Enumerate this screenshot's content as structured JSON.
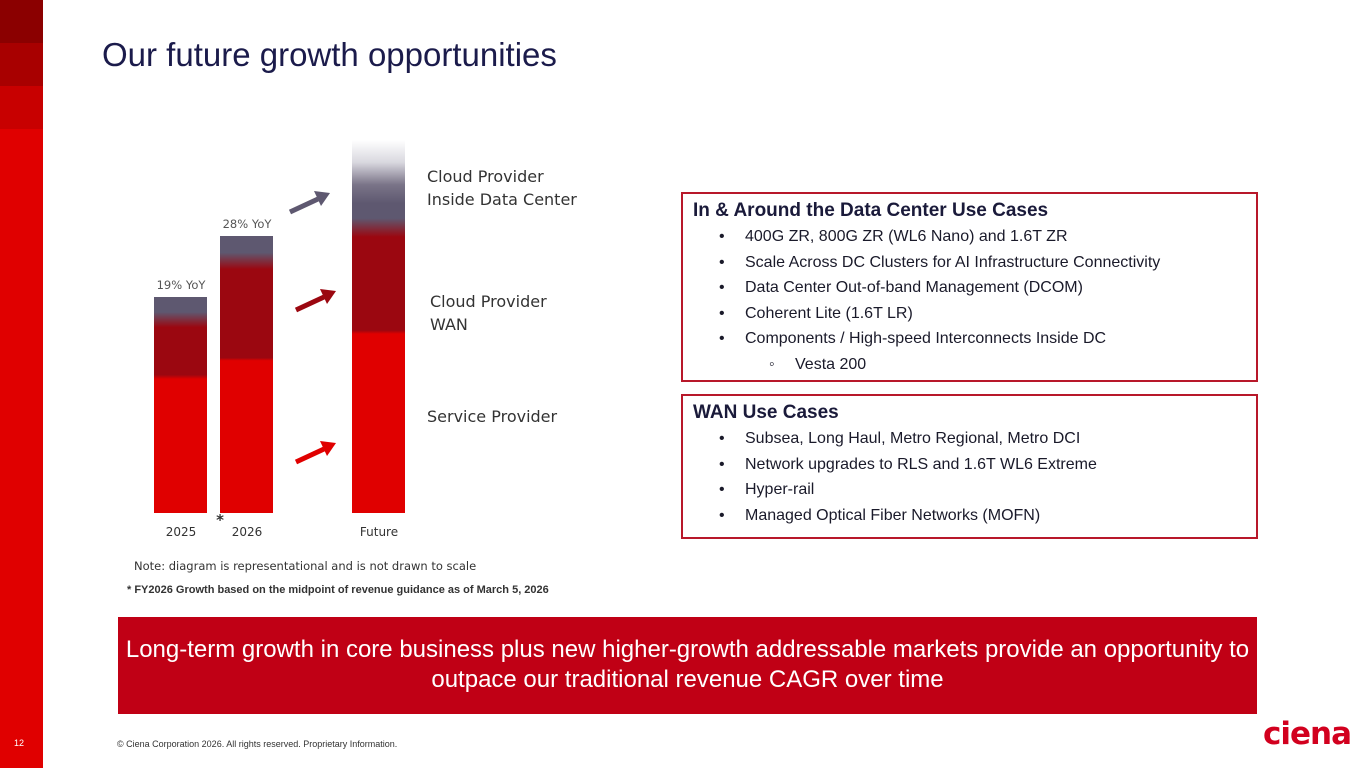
{
  "slide": {
    "title": "Our future growth opportunities",
    "page_number": "12",
    "copyright": "© Ciena Corporation 2026. All rights reserved. Proprietary Information.",
    "logo_text": "ciena"
  },
  "chart_data": {
    "type": "bar",
    "stacked": true,
    "categories": [
      "2025",
      "2026",
      "Future"
    ],
    "category_marker": "*",
    "bar_labels": [
      "19% YoY",
      "28% YoY",
      ""
    ],
    "segments": [
      "Service Provider",
      "Cloud Provider WAN",
      "Cloud Provider Inside Data Center"
    ],
    "segment_labels": [
      "Service Provider",
      "Cloud Provider\nWAN",
      "Cloud Provider\nInside Data Center"
    ],
    "colors": {
      "service_provider": "#e00000",
      "cloud_wan": "#9b0710",
      "cloud_dc": "#5e5870"
    }
  },
  "boxes": {
    "dc": {
      "title": "In & Around the Data Center Use Cases",
      "items": [
        "400G ZR, 800G ZR (WL6 Nano) and 1.6T ZR",
        "Scale Across DC Clusters for AI Infrastructure Connectivity",
        "Data Center Out-of-band Management (DCOM)",
        "Coherent Lite (1.6T LR)",
        "Components / High-speed Interconnects Inside DC"
      ],
      "sub_item": "Vesta 200"
    },
    "wan": {
      "title": "WAN Use Cases",
      "items": [
        "Subsea, Long Haul, Metro Regional, Metro DCI",
        "Network upgrades to RLS and 1.6T WL6 Extreme",
        "Hyper-rail",
        "Managed Optical Fiber Networks (MOFN)"
      ]
    }
  },
  "note": "Note: diagram is representational and is not drawn to scale",
  "footnote": "* FY2026 Growth based on the midpoint of revenue guidance as of March 5, 2026",
  "banner": "Long-term growth in core business plus new higher-growth addressable markets provide an opportunity to outpace our traditional revenue CAGR over time"
}
